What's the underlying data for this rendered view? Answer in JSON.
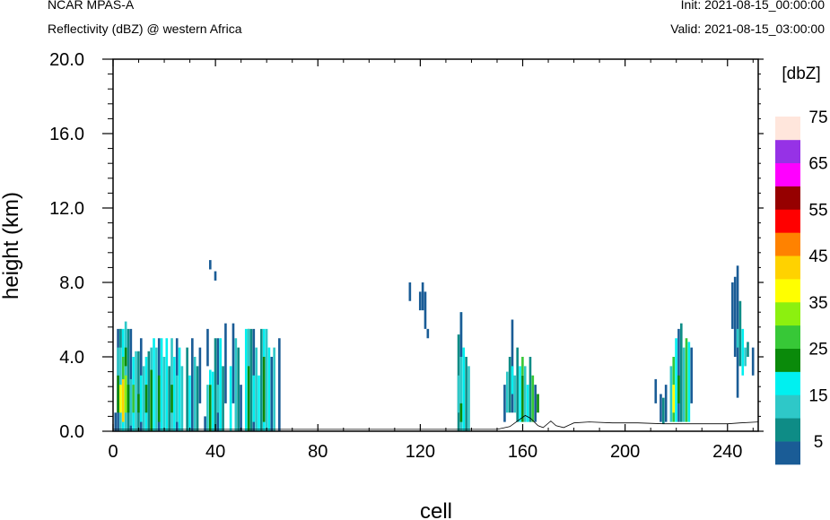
{
  "header": {
    "model": "NCAR MPAS-A",
    "field": "Reflectivity (dBZ) @ western Africa",
    "init": "Init: 2021-08-15_00:00:00",
    "valid": "Valid: 2021-08-15_03:00:00"
  },
  "chart_data": {
    "type": "heatmap",
    "xlabel": "cell",
    "ylabel": "height (km)",
    "xlim": [
      0,
      252
    ],
    "ylim": [
      0,
      20
    ],
    "x_ticks": [
      "0",
      "40",
      "80",
      "120",
      "160",
      "200",
      "240"
    ],
    "y_ticks": [
      "0.0",
      "4.0",
      "8.0",
      "12.0",
      "16.0",
      "20.0"
    ],
    "colorbar": {
      "title": "[dbZ]",
      "labels": [
        "5",
        "15",
        "25",
        "35",
        "45",
        "55",
        "65",
        "75"
      ],
      "colors": [
        "#1a5c96",
        "#0e8c86",
        "#2ec8c8",
        "#00f0f0",
        "#0a8a0a",
        "#37c837",
        "#8cf00f",
        "#ffff00",
        "#ffd200",
        "#ff8200",
        "#ff0000",
        "#960000",
        "#ff00ff",
        "#9632e6",
        "#ffe6dc"
      ]
    },
    "terrain": [
      [
        0,
        0.1
      ],
      [
        100,
        0.1
      ],
      [
        130,
        0.1
      ],
      [
        150,
        0.1
      ],
      [
        155,
        0.25
      ],
      [
        158,
        0.55
      ],
      [
        161,
        0.85
      ],
      [
        163,
        0.7
      ],
      [
        166,
        0.3
      ],
      [
        168,
        0.2
      ],
      [
        171,
        0.55
      ],
      [
        173,
        0.3
      ],
      [
        176,
        0.2
      ],
      [
        180,
        0.45
      ],
      [
        186,
        0.5
      ],
      [
        195,
        0.45
      ],
      [
        205,
        0.45
      ],
      [
        215,
        0.4
      ],
      [
        225,
        0.4
      ],
      [
        230,
        0.4
      ],
      [
        240,
        0.4
      ],
      [
        245,
        0.45
      ],
      [
        252,
        0.5
      ]
    ],
    "echoes": [
      {
        "x": 1,
        "y0": 0,
        "y1": 1.0,
        "c": 0
      },
      {
        "x": 2,
        "y0": 0,
        "y1": 5.5,
        "c": 0
      },
      {
        "x": 2,
        "y0": 1,
        "y1": 3,
        "c": 4
      },
      {
        "x": 2,
        "y0": 3,
        "y1": 4.5,
        "c": 2
      },
      {
        "x": 3,
        "y0": 0,
        "y1": 5.5,
        "c": 2
      },
      {
        "x": 3,
        "y0": 1,
        "y1": 2.5,
        "c": 7
      },
      {
        "x": 3,
        "y0": 4.5,
        "y1": 5.5,
        "c": 1
      },
      {
        "x": 4,
        "y0": 0,
        "y1": 5.5,
        "c": 3
      },
      {
        "x": 4,
        "y0": 0.5,
        "y1": 2.8,
        "c": 8
      },
      {
        "x": 4,
        "y0": 2.8,
        "y1": 4,
        "c": 5
      },
      {
        "x": 5,
        "y0": 0,
        "y1": 5.9,
        "c": 2
      },
      {
        "x": 5,
        "y0": 1,
        "y1": 3,
        "c": 6
      },
      {
        "x": 5,
        "y0": 3.5,
        "y1": 4.5,
        "c": 4
      },
      {
        "x": 6,
        "y0": 0,
        "y1": 5.5,
        "c": 1
      },
      {
        "x": 6,
        "y0": 1,
        "y1": 2.5,
        "c": 4
      },
      {
        "x": 7,
        "y0": 0,
        "y1": 5.5,
        "c": 0
      },
      {
        "x": 7,
        "y0": 0.3,
        "y1": 2.8,
        "c": 2
      },
      {
        "x": 8,
        "y0": 0,
        "y1": 4.0,
        "c": 3
      },
      {
        "x": 8,
        "y0": 1,
        "y1": 2.5,
        "c": 5
      },
      {
        "x": 9,
        "y0": 0,
        "y1": 4.3,
        "c": 2
      },
      {
        "x": 10,
        "y0": 0,
        "y1": 4.3,
        "c": 1
      },
      {
        "x": 10,
        "y0": 1,
        "y1": 2,
        "c": 4
      },
      {
        "x": 11,
        "y0": 0,
        "y1": 5.0,
        "c": 0
      },
      {
        "x": 11,
        "y0": 0.5,
        "y1": 3,
        "c": 3
      },
      {
        "x": 12,
        "y0": 0,
        "y1": 3.5,
        "c": 2
      },
      {
        "x": 13,
        "y0": 0,
        "y1": 4.0,
        "c": 3
      },
      {
        "x": 13,
        "y0": 1,
        "y1": 2.5,
        "c": 4
      },
      {
        "x": 14,
        "y0": 0,
        "y1": 4.3,
        "c": 1
      },
      {
        "x": 15,
        "y0": 0,
        "y1": 3.3,
        "c": 4
      },
      {
        "x": 15,
        "y0": 3.3,
        "y1": 4.5,
        "c": 2
      },
      {
        "x": 16,
        "y0": 0,
        "y1": 5.0,
        "c": 3
      },
      {
        "x": 17,
        "y0": 0,
        "y1": 4.5,
        "c": 2
      },
      {
        "x": 18,
        "y0": 0,
        "y1": 5.0,
        "c": 0
      },
      {
        "x": 18,
        "y0": 0.5,
        "y1": 3,
        "c": 4
      },
      {
        "x": 19,
        "y0": 0,
        "y1": 5.0,
        "c": 3
      },
      {
        "x": 20,
        "y0": 0,
        "y1": 4.0,
        "c": 2
      },
      {
        "x": 21,
        "y0": 0,
        "y1": 5.0,
        "c": 3
      },
      {
        "x": 22,
        "y0": 0,
        "y1": 3.5,
        "c": 1
      },
      {
        "x": 23,
        "y0": 0,
        "y1": 5.0,
        "c": 2
      },
      {
        "x": 23,
        "y0": 1,
        "y1": 2.5,
        "c": 4
      },
      {
        "x": 24,
        "y0": 0,
        "y1": 4.0,
        "c": 3
      },
      {
        "x": 25,
        "y0": 0,
        "y1": 5.0,
        "c": 0
      },
      {
        "x": 25,
        "y0": 0.5,
        "y1": 3,
        "c": 2
      },
      {
        "x": 26,
        "y0": 0,
        "y1": 4.5,
        "c": 3
      },
      {
        "x": 27,
        "y0": 0,
        "y1": 3.5,
        "c": 2
      },
      {
        "x": 29,
        "y0": 0,
        "y1": 4.5,
        "c": 1
      },
      {
        "x": 30,
        "y0": 0,
        "y1": 3.0,
        "c": 3
      },
      {
        "x": 31,
        "y0": 0,
        "y1": 5.0,
        "c": 0
      },
      {
        "x": 32,
        "y0": 0,
        "y1": 4.0,
        "c": 2
      },
      {
        "x": 33,
        "y0": 0,
        "y1": 3.5,
        "c": 1
      },
      {
        "x": 34,
        "y0": 1.5,
        "y1": 4.5,
        "c": 0
      },
      {
        "x": 36,
        "y0": 0,
        "y1": 0.8,
        "c": 0
      },
      {
        "x": 37,
        "y0": 0,
        "y1": 2.5,
        "c": 2
      },
      {
        "x": 37,
        "y0": 3.5,
        "y1": 5.5,
        "c": 0
      },
      {
        "x": 38,
        "y0": 0,
        "y1": 2.5,
        "c": 4
      },
      {
        "x": 38,
        "y0": 2.5,
        "y1": 3.3,
        "c": 3
      },
      {
        "x": 38,
        "y0": 8.7,
        "y1": 9.2,
        "c": 0
      },
      {
        "x": 39,
        "y0": 0,
        "y1": 3.2,
        "c": 3
      },
      {
        "x": 40,
        "y0": 0,
        "y1": 5.0,
        "c": 1
      },
      {
        "x": 40,
        "y0": 8.1,
        "y1": 8.6,
        "c": 0
      },
      {
        "x": 41,
        "y0": 0,
        "y1": 5.0,
        "c": 0
      },
      {
        "x": 41,
        "y0": 1,
        "y1": 2.5,
        "c": 2
      },
      {
        "x": 42,
        "y0": 0,
        "y1": 5.0,
        "c": 3
      },
      {
        "x": 43,
        "y0": 0,
        "y1": 3.5,
        "c": 1
      },
      {
        "x": 44,
        "y0": 1.5,
        "y1": 5.8,
        "c": 0
      },
      {
        "x": 46,
        "y0": 0,
        "y1": 3.5,
        "c": 3
      },
      {
        "x": 47,
        "y0": 1.5,
        "y1": 5.8,
        "c": 0
      },
      {
        "x": 48,
        "y0": 0,
        "y1": 5.0,
        "c": 2
      },
      {
        "x": 49,
        "y0": 0,
        "y1": 4.5,
        "c": 1
      },
      {
        "x": 50,
        "y0": 0,
        "y1": 2.5,
        "c": 0
      },
      {
        "x": 52,
        "y0": 0,
        "y1": 5.5,
        "c": 3
      },
      {
        "x": 53,
        "y0": 0,
        "y1": 5.5,
        "c": 4
      },
      {
        "x": 53,
        "y0": 3.5,
        "y1": 5.5,
        "c": 2
      },
      {
        "x": 54,
        "y0": 0,
        "y1": 5.5,
        "c": 1
      },
      {
        "x": 55,
        "y0": 0,
        "y1": 5.5,
        "c": 0
      },
      {
        "x": 55,
        "y0": 0.5,
        "y1": 3,
        "c": 3
      },
      {
        "x": 56,
        "y0": 0,
        "y1": 4.5,
        "c": 2
      },
      {
        "x": 57,
        "y0": 0,
        "y1": 3.0,
        "c": 3
      },
      {
        "x": 58,
        "y0": 0,
        "y1": 5.5,
        "c": 1
      },
      {
        "x": 59,
        "y0": 0,
        "y1": 5.5,
        "c": 3
      },
      {
        "x": 59,
        "y0": 0.5,
        "y1": 4,
        "c": 4
      },
      {
        "x": 60,
        "y0": 0,
        "y1": 5.5,
        "c": 2
      },
      {
        "x": 61,
        "y0": 0,
        "y1": 4.5,
        "c": 3
      },
      {
        "x": 62,
        "y0": 0,
        "y1": 4.0,
        "c": 0
      },
      {
        "x": 63,
        "y0": 0,
        "y1": 4.5,
        "c": 2
      },
      {
        "x": 65,
        "y0": 0,
        "y1": 5.0,
        "c": 0
      },
      {
        "x": 116,
        "y0": 7.0,
        "y1": 8.0,
        "c": 0
      },
      {
        "x": 120,
        "y0": 6.5,
        "y1": 7.5,
        "c": 0
      },
      {
        "x": 121,
        "y0": 6.5,
        "y1": 8.0,
        "c": 0
      },
      {
        "x": 122,
        "y0": 5.5,
        "y1": 7.5,
        "c": 0
      },
      {
        "x": 123,
        "y0": 5.0,
        "y1": 5.5,
        "c": 0
      },
      {
        "x": 135,
        "y0": 0,
        "y1": 5.2,
        "c": 1
      },
      {
        "x": 135,
        "y0": 1,
        "y1": 3,
        "c": 2
      },
      {
        "x": 136,
        "y0": 0,
        "y1": 6.4,
        "c": 2
      },
      {
        "x": 136,
        "y0": 0.5,
        "y1": 1.5,
        "c": 4
      },
      {
        "x": 136,
        "y0": 4,
        "y1": 6.4,
        "c": 0
      },
      {
        "x": 137,
        "y0": 0,
        "y1": 4.5,
        "c": 3
      },
      {
        "x": 138,
        "y0": 0,
        "y1": 4.0,
        "c": 1
      },
      {
        "x": 139,
        "y0": 0,
        "y1": 3.5,
        "c": 2
      },
      {
        "x": 153,
        "y0": 0.5,
        "y1": 2.5,
        "c": 0
      },
      {
        "x": 154,
        "y0": 1.0,
        "y1": 3.2,
        "c": 2
      },
      {
        "x": 155,
        "y0": 1.0,
        "y1": 4.0,
        "c": 1
      },
      {
        "x": 156,
        "y0": 1.0,
        "y1": 6.0,
        "c": 0
      },
      {
        "x": 156,
        "y0": 2,
        "y1": 3.5,
        "c": 3
      },
      {
        "x": 157,
        "y0": 1.0,
        "y1": 3.0,
        "c": 2
      },
      {
        "x": 158,
        "y0": 0.5,
        "y1": 4.5,
        "c": 1
      },
      {
        "x": 159,
        "y0": 0.5,
        "y1": 3.5,
        "c": 3
      },
      {
        "x": 160,
        "y0": 0.5,
        "y1": 3.0,
        "c": 4
      },
      {
        "x": 160,
        "y0": 3.0,
        "y1": 4.0,
        "c": 5
      },
      {
        "x": 161,
        "y0": 0.5,
        "y1": 3.5,
        "c": 2
      },
      {
        "x": 162,
        "y0": 0.5,
        "y1": 2.5,
        "c": 3
      },
      {
        "x": 163,
        "y0": 0.5,
        "y1": 4.0,
        "c": 1
      },
      {
        "x": 164,
        "y0": 0.5,
        "y1": 3.0,
        "c": 5
      },
      {
        "x": 165,
        "y0": 0.5,
        "y1": 2.5,
        "c": 0
      },
      {
        "x": 166,
        "y0": 1.0,
        "y1": 2.0,
        "c": 4
      },
      {
        "x": 212,
        "y0": 1.5,
        "y1": 2.8,
        "c": 0
      },
      {
        "x": 214,
        "y0": 0.5,
        "y1": 2.0,
        "c": 0
      },
      {
        "x": 215,
        "y0": 0.4,
        "y1": 1.8,
        "c": 1
      },
      {
        "x": 216,
        "y0": 0.5,
        "y1": 2.5,
        "c": 0
      },
      {
        "x": 218,
        "y0": 0.5,
        "y1": 3.5,
        "c": 2
      },
      {
        "x": 219,
        "y0": 0.5,
        "y1": 4.0,
        "c": 5
      },
      {
        "x": 219,
        "y0": 1,
        "y1": 2.5,
        "c": 7
      },
      {
        "x": 220,
        "y0": 0.5,
        "y1": 5.0,
        "c": 3
      },
      {
        "x": 221,
        "y0": 0.5,
        "y1": 5.5,
        "c": 0
      },
      {
        "x": 221,
        "y0": 1.5,
        "y1": 3,
        "c": 4
      },
      {
        "x": 222,
        "y0": 0.5,
        "y1": 5.8,
        "c": 1
      },
      {
        "x": 223,
        "y0": 0.5,
        "y1": 4.5,
        "c": 2
      },
      {
        "x": 224,
        "y0": 0.5,
        "y1": 5.0,
        "c": 5
      },
      {
        "x": 225,
        "y0": 0.5,
        "y1": 4.8,
        "c": 3
      },
      {
        "x": 226,
        "y0": 1.5,
        "y1": 4.5,
        "c": 0
      },
      {
        "x": 242,
        "y0": 5.5,
        "y1": 8.0,
        "c": 0
      },
      {
        "x": 243,
        "y0": 4.0,
        "y1": 8.3,
        "c": 0
      },
      {
        "x": 244,
        "y0": 1.8,
        "y1": 8.9,
        "c": 0
      },
      {
        "x": 244,
        "y0": 4.5,
        "y1": 5.5,
        "c": 2
      },
      {
        "x": 245,
        "y0": 3.5,
        "y1": 7.0,
        "c": 1
      },
      {
        "x": 246,
        "y0": 3.0,
        "y1": 5.5,
        "c": 3
      },
      {
        "x": 247,
        "y0": 3.5,
        "y1": 4.5,
        "c": 2
      },
      {
        "x": 248,
        "y0": 4.0,
        "y1": 4.8,
        "c": 1
      },
      {
        "x": 250,
        "y0": 3.0,
        "y1": 4.5,
        "c": 0
      }
    ]
  }
}
